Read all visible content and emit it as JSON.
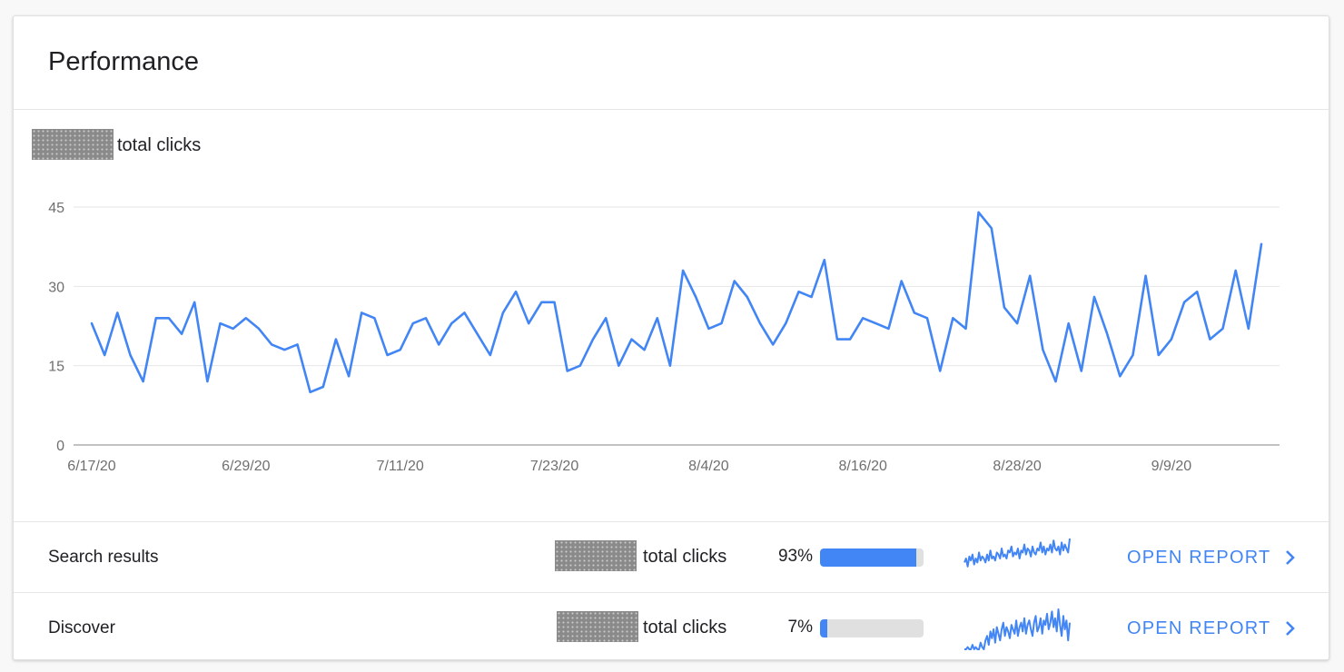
{
  "card": {
    "title": "Performance"
  },
  "summary": {
    "total_label": "total clicks"
  },
  "chart_data": {
    "type": "line",
    "series": [
      {
        "color": "#4285f4",
        "values": [
          23,
          17,
          25,
          17,
          12,
          24,
          24,
          21,
          27,
          12,
          23,
          22,
          24,
          22,
          19,
          18,
          19,
          10,
          11,
          20,
          13,
          25,
          24,
          17,
          18,
          23,
          24,
          19,
          23,
          25,
          21,
          17,
          25,
          29,
          23,
          27,
          27,
          14,
          15,
          20,
          24,
          15,
          20,
          18,
          24,
          15,
          33,
          28,
          22,
          23,
          31,
          28,
          23,
          19,
          23,
          29,
          28,
          35,
          20,
          20,
          24,
          23,
          22,
          31,
          25,
          24,
          14,
          24,
          22,
          44,
          41,
          26,
          23,
          32,
          18,
          12,
          23,
          14,
          28,
          21,
          13,
          17,
          32,
          17,
          20,
          27,
          29,
          20,
          22,
          33,
          22,
          38
        ]
      }
    ],
    "x_tick_labels": [
      "6/17/20",
      "6/29/20",
      "7/11/20",
      "7/23/20",
      "8/4/20",
      "8/16/20",
      "8/28/20",
      "9/9/20"
    ],
    "y_ticks": [
      0,
      15,
      30,
      45
    ],
    "ylim": [
      0,
      45
    ],
    "grid": true
  },
  "rows": [
    {
      "name": "Search results",
      "total_label": "total clicks",
      "percent": "93%",
      "share": 0.93,
      "action": "OPEN REPORT",
      "sparkline": [
        8,
        10,
        6,
        11,
        9,
        12,
        7,
        10,
        8,
        13,
        9,
        11,
        10,
        8,
        12,
        9,
        14,
        10,
        11,
        9,
        13,
        12,
        10,
        15,
        11,
        12,
        10,
        14,
        13,
        16,
        11,
        13,
        12,
        15,
        10,
        14,
        13,
        17,
        12,
        15,
        14,
        11,
        16,
        13,
        12,
        15,
        14,
        18,
        13,
        16,
        12,
        15,
        14,
        17,
        13,
        19,
        15,
        14,
        16,
        12,
        18,
        14,
        17,
        15,
        13,
        20
      ]
    },
    {
      "name": "Discover",
      "total_label": "total clicks",
      "percent": "7%",
      "share": 0.07,
      "action": "OPEN REPORT",
      "sparkline": [
        0,
        0,
        1,
        0,
        0,
        2,
        0,
        1,
        0,
        0,
        3,
        1,
        0,
        4,
        6,
        2,
        8,
        5,
        9,
        3,
        10,
        7,
        4,
        9,
        12,
        6,
        10,
        8,
        5,
        11,
        9,
        7,
        13,
        6,
        10,
        12,
        8,
        14,
        7,
        11,
        13,
        9,
        6,
        12,
        15,
        8,
        10,
        14,
        7,
        13,
        11,
        16,
        9,
        12,
        17,
        10,
        14,
        8,
        18,
        11,
        6,
        15,
        9,
        13,
        4,
        12
      ]
    }
  ],
  "colors": {
    "accent": "#4285f4",
    "grid": "#e6e6e6",
    "axis": "#9e9e9e"
  },
  "icons": {
    "open_report": "chevron-right-icon"
  }
}
